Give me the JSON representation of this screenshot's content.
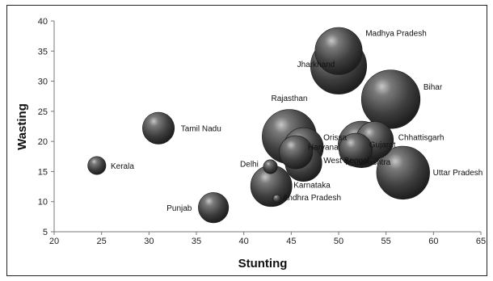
{
  "chart_data": {
    "type": "bubble",
    "xlabel": "Stunting",
    "ylabel": "Wasting",
    "xlim": [
      20,
      65
    ],
    "ylim": [
      5,
      40
    ],
    "x_ticks": [
      20,
      25,
      30,
      35,
      40,
      45,
      50,
      55,
      60,
      65
    ],
    "y_ticks": [
      5,
      10,
      15,
      20,
      25,
      30,
      35,
      40
    ],
    "grid": false,
    "legend": "none",
    "bubble_color": "#4a4a4a",
    "points": [
      {
        "label": "Kerala",
        "x": 24.5,
        "y": 16,
        "size": 1
      },
      {
        "label": "Tamil Nadu",
        "x": 31,
        "y": 22.2,
        "size": 3.1
      },
      {
        "label": "Punjab",
        "x": 36.8,
        "y": 9,
        "size": 2.8
      },
      {
        "label": "Delhi",
        "x": 42.8,
        "y": 15.8,
        "size": 0.6
      },
      {
        "label": "Karnataka",
        "x": 42.9,
        "y": 12.6,
        "size": 5.2
      },
      {
        "label": "Andhra Pradesh",
        "x": 43.5,
        "y": 10.5,
        "size": 0.2
      },
      {
        "label": "Rajasthan",
        "x": 44.8,
        "y": 20.8,
        "size": 9
      },
      {
        "label": "Orissa",
        "x": 46.3,
        "y": 19,
        "size": 4.8
      },
      {
        "label": "Haryana",
        "x": 45.5,
        "y": 18.2,
        "size": 3.4
      },
      {
        "label": "West Bengal",
        "x": 46.3,
        "y": 16.4,
        "size": 4.1
      },
      {
        "label": "Maharashtra",
        "x": 52.4,
        "y": 19.5,
        "size": 6.6
      },
      {
        "label": "Gujarat",
        "x": 51.8,
        "y": 18.6,
        "size": 3.4
      },
      {
        "label": "Chhattisgarh",
        "x": 53.8,
        "y": 20.2,
        "size": 4.3
      },
      {
        "label": "Uttar Pradesh",
        "x": 56.8,
        "y": 14.8,
        "size": 8.6
      },
      {
        "label": "Bihar",
        "x": 55.5,
        "y": 27,
        "size": 10.5
      },
      {
        "label": "Madhya Pradesh",
        "x": 50,
        "y": 35,
        "size": 6.8
      },
      {
        "label": "Jharkhand",
        "x": 50,
        "y": 32.5,
        "size": 9.6
      }
    ]
  }
}
